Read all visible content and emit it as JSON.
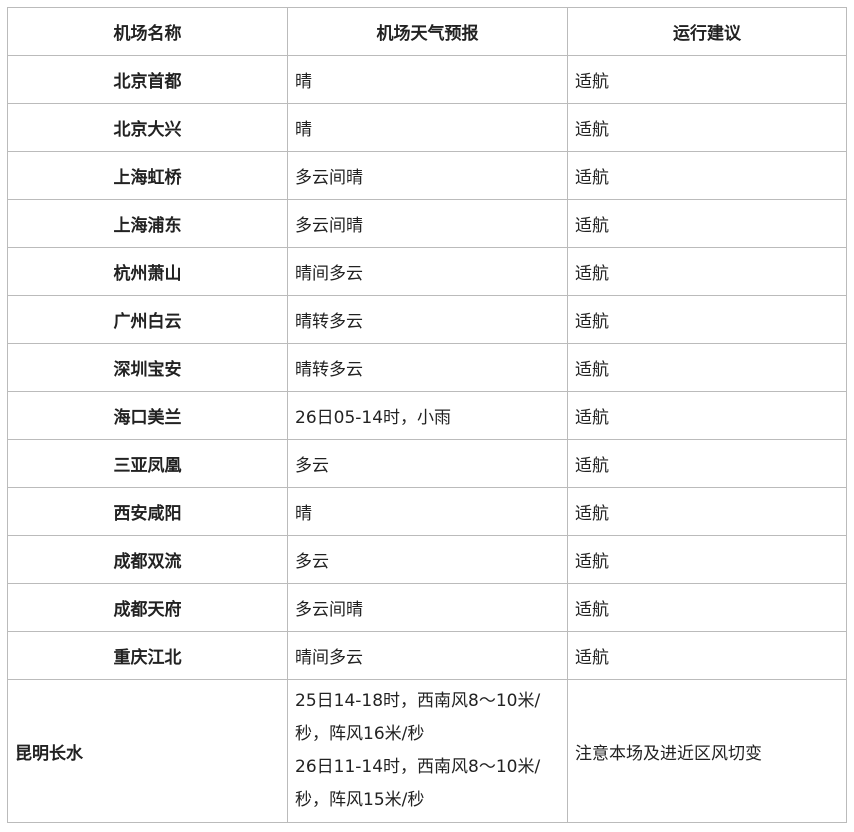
{
  "headers": [
    "机场名称",
    "机场天气预报",
    "运行建议"
  ],
  "rows": [
    {
      "airport": "北京首都",
      "forecast": "晴",
      "advice": "适航"
    },
    {
      "airport": "北京大兴",
      "forecast": "晴",
      "advice": "适航"
    },
    {
      "airport": "上海虹桥",
      "forecast": "多云间晴",
      "advice": "适航"
    },
    {
      "airport": "上海浦东",
      "forecast": "多云间晴",
      "advice": "适航"
    },
    {
      "airport": "杭州萧山",
      "forecast": "晴间多云",
      "advice": "适航"
    },
    {
      "airport": "广州白云",
      "forecast": "晴转多云",
      "advice": "适航"
    },
    {
      "airport": "深圳宝安",
      "forecast": "晴转多云",
      "advice": "适航"
    },
    {
      "airport": "海口美兰",
      "forecast": "26日05-14时，小雨",
      "advice": "适航"
    },
    {
      "airport": "三亚凤凰",
      "forecast": "多云",
      "advice": "适航"
    },
    {
      "airport": "西安咸阳",
      "forecast": "晴",
      "advice": "适航"
    },
    {
      "airport": "成都双流",
      "forecast": "多云",
      "advice": "适航"
    },
    {
      "airport": "成都天府",
      "forecast": "多云间晴",
      "advice": "适航"
    },
    {
      "airport": "重庆江北",
      "forecast": "晴间多云",
      "advice": "适航"
    }
  ],
  "last_row": {
    "airport": "昆明长水",
    "forecast_lines": [
      "25日14-18时，西南风8～10米/秒，阵风16米/秒",
      "26日11-14时，西南风8～10米/秒，阵风15米/秒"
    ],
    "advice": "注意本场及进近区风切变"
  }
}
